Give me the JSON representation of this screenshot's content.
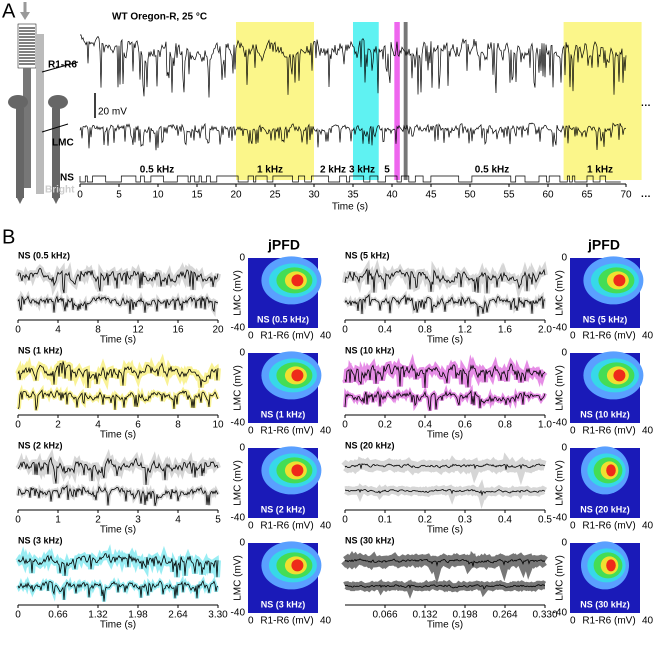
{
  "panel_a": {
    "label": "A",
    "title": "WT Oregon-R, 25 °C",
    "r1r6": "R1-R6",
    "lmc": "LMC",
    "ns": "NS",
    "bright": "Bright",
    "scale": "20 mV",
    "ellipsis": "···",
    "frequencies": [
      "0.5 kHz",
      "1 kHz",
      "2 kHz",
      "3 kHz",
      "5",
      "0.5 kHz",
      "1 kHz"
    ],
    "ticks": [
      "0",
      "5",
      "10",
      "15",
      "20",
      "25",
      "30",
      "35",
      "40",
      "45",
      "50",
      "55",
      "60",
      "65",
      "70"
    ],
    "x_label": "Time (s)"
  },
  "panel_b": {
    "label": "B",
    "jpfd_title": "jPFD",
    "x_label": "Time (s)",
    "jpfd_y_label": "LMC (mV)",
    "jpfd_x_label": "R1-R6 (mV)",
    "jpfd_top": "0",
    "jpfd_bottom": "-40",
    "jpfd_right": "40",
    "plots": [
      {
        "name": "NS (0.5 kHz)",
        "ticks": [
          "0",
          "4",
          "8",
          "12",
          "16",
          "20"
        ]
      },
      {
        "name": "NS (1 kHz)",
        "ticks": [
          "0",
          "2",
          "4",
          "6",
          "8",
          "10"
        ]
      },
      {
        "name": "NS (2 kHz)",
        "ticks": [
          "0",
          "1",
          "2",
          "3",
          "4",
          "5"
        ]
      },
      {
        "name": "NS (3 kHz)",
        "ticks": [
          "0",
          "0.66",
          "1.32",
          "1.98",
          "2.64",
          "3.30"
        ]
      },
      {
        "name": "NS (5 kHz)",
        "ticks": [
          "0",
          "0.4",
          "0.8",
          "1.2",
          "1.6",
          "2.0"
        ]
      },
      {
        "name": "NS (10 kHz)",
        "ticks": [
          "0",
          "0.2",
          "0.4",
          "0.6",
          "0.8",
          "1.0"
        ]
      },
      {
        "name": "NS (20 kHz)",
        "ticks": [
          "0",
          "0.1",
          "0.2",
          "0.3",
          "0.4",
          "0.5"
        ]
      },
      {
        "name": "NS (30 kHz)",
        "ticks": [
          "0.066",
          "0.132",
          "0.198",
          "0.264",
          "0.330"
        ]
      }
    ]
  }
}
